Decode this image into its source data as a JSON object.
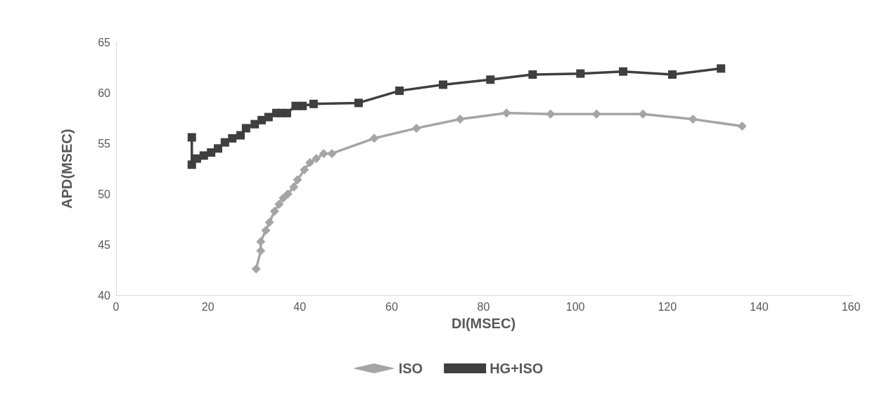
{
  "chart_data": {
    "type": "line",
    "xlabel": "DI(MSEC)",
    "ylabel": "APD(MSEC)",
    "xlim": [
      0,
      160
    ],
    "xticks": [
      0,
      20,
      40,
      60,
      80,
      100,
      120,
      140,
      160
    ],
    "ylim": [
      40,
      65
    ],
    "yticks": [
      40,
      45,
      50,
      55,
      60,
      65
    ],
    "grid": false,
    "legend": "bottom",
    "line_style": "solid",
    "series": [
      {
        "name": "ISO",
        "color": "#a5a5a5",
        "marker": "diamond",
        "x": [
          30.5,
          31.5,
          31.5,
          32.6,
          33.4,
          34.5,
          35.5,
          36.4,
          37.4,
          38.7,
          39.5,
          41.0,
          42.2,
          43.6,
          45.2,
          47.0,
          56.2,
          65.4,
          74.9,
          85.0,
          94.6,
          104.6,
          114.7,
          125.6,
          136.3
        ],
        "values": [
          42.6,
          44.4,
          45.3,
          46.4,
          47.2,
          48.3,
          49.0,
          49.6,
          50.0,
          50.7,
          51.4,
          52.4,
          53.1,
          53.5,
          54.0,
          54.0,
          55.5,
          56.5,
          57.4,
          58.0,
          57.9,
          57.9,
          57.9,
          57.4,
          56.7
        ]
      },
      {
        "name": "HG+ISO",
        "color": "#3f3f3f",
        "marker": "square",
        "x": [
          16.5,
          16.5,
          17.6,
          19.1,
          20.7,
          22.2,
          23.7,
          25.3,
          27.1,
          28.3,
          30.2,
          31.7,
          33.2,
          34.9,
          36.0,
          37.2,
          39.1,
          40.6,
          43.0,
          52.8,
          61.7,
          71.2,
          81.5,
          90.7,
          101.1,
          110.4,
          121.1,
          131.7
        ],
        "values": [
          55.6,
          52.9,
          53.5,
          53.8,
          54.1,
          54.5,
          55.1,
          55.5,
          55.8,
          56.5,
          56.9,
          57.3,
          57.6,
          58.0,
          58.0,
          58.0,
          58.7,
          58.7,
          58.9,
          59.0,
          60.2,
          60.8,
          61.3,
          61.8,
          61.9,
          62.1,
          61.8,
          62.4
        ]
      }
    ]
  }
}
